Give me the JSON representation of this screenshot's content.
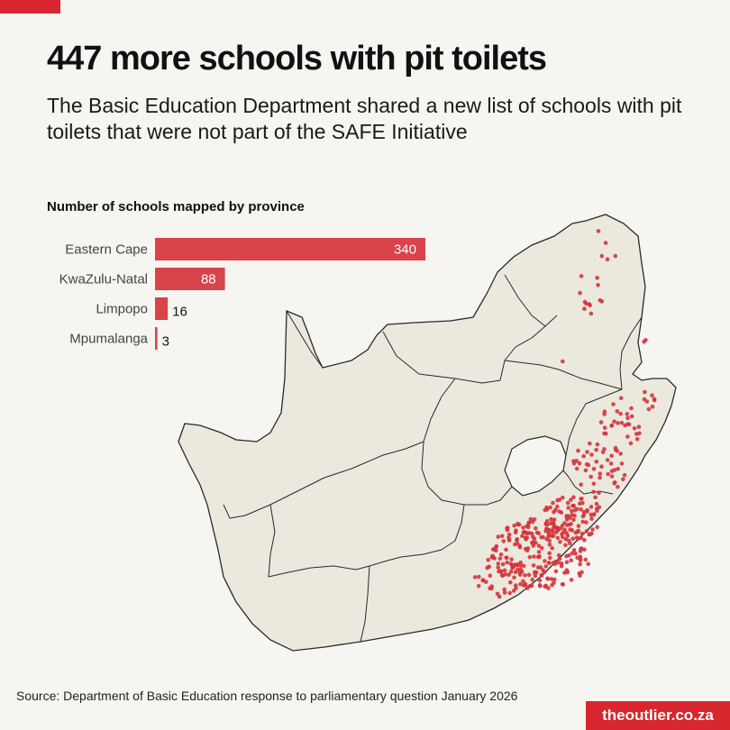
{
  "header": {
    "title": "447 more schools with pit toilets",
    "subtitle": "The Basic Education Department shared a new list of schools with pit toilets that were not part of the SAFE Initiative"
  },
  "chart_data": {
    "type": "bar",
    "orientation": "horizontal",
    "title": "Number of schools mapped by province",
    "categories": [
      "Eastern Cape",
      "KwaZulu-Natal",
      "Limpopo",
      "Mpumalanga"
    ],
    "values": [
      340,
      88,
      16,
      3
    ],
    "bar_color": "#d9434a"
  },
  "map": {
    "land_color": "#ebe8de",
    "border_color": "#2a2a2a",
    "point_color": "#d4353c"
  },
  "footer": {
    "source": "Source: Department of Basic Education response to parliamentary question January 2026",
    "brand": "theoutlier.co.za"
  }
}
